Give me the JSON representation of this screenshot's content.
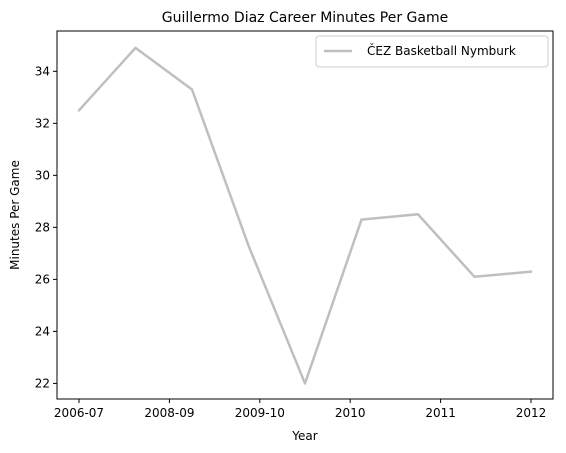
{
  "chart_data": {
    "type": "line",
    "title": "Guillermo Diaz  Career Minutes Per Game",
    "xlabel": "Year",
    "ylabel": "Minutes Per Game",
    "x_tick_labels": [
      "2006-07",
      "2008-09",
      "2009-10",
      "2010",
      "2011",
      "2012"
    ],
    "y_ticks": [
      22,
      24,
      26,
      28,
      30,
      32,
      34
    ],
    "ylim": [
      21.4,
      35.55
    ],
    "grid": false,
    "legend_position": "top-right",
    "series": [
      {
        "name": "ČEZ Basketball Nymburk",
        "color": "#bfbfbf",
        "values": [
          32.5,
          34.9,
          33.3,
          27.3,
          22.0,
          28.3,
          28.5,
          26.1,
          26.3
        ]
      }
    ]
  }
}
